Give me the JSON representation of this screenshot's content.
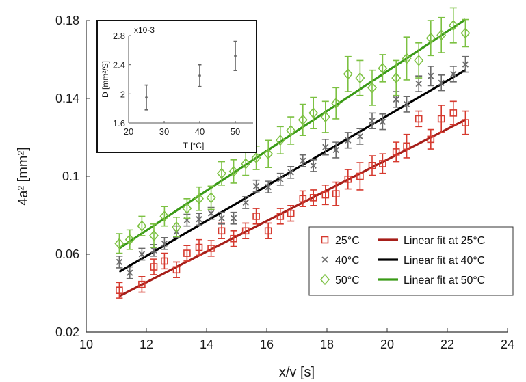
{
  "chart_data": [
    {
      "type": "scatter",
      "xlabel": "x/v [s]",
      "ylabel": "4a² [mm²]",
      "xlim": [
        10,
        24
      ],
      "ylim": [
        0.02,
        0.18
      ],
      "xticks": [
        "10",
        "12",
        "14",
        "16",
        "18",
        "20",
        "22",
        "24"
      ],
      "yticks": [
        "0.02",
        "0.06",
        "0.1",
        "0.14",
        "0.18"
      ],
      "legend_position": "bottom-right",
      "grid": false,
      "x": [
        11.1,
        11.45,
        11.85,
        12.25,
        12.6,
        13.0,
        13.35,
        13.75,
        14.15,
        14.5,
        14.9,
        15.3,
        15.65,
        16.05,
        16.45,
        16.8,
        17.2,
        17.55,
        17.95,
        18.3,
        18.7,
        19.1,
        19.5,
        19.85,
        20.3,
        20.65,
        21.05,
        21.45,
        21.8,
        22.2,
        22.6
      ],
      "series": [
        {
          "name": "25°C",
          "marker": "square",
          "color": "#d63a2f",
          "values": [
            0.0415,
            null,
            0.0445,
            0.0535,
            0.0565,
            0.052,
            0.0605,
            0.0635,
            0.063,
            0.072,
            0.068,
            0.072,
            0.0795,
            0.072,
            0.0795,
            0.081,
            0.0885,
            0.089,
            0.0905,
            0.091,
            0.0985,
            0.1,
            0.1055,
            0.1065,
            0.1125,
            0.1155,
            0.1295,
            0.119,
            0.1295,
            0.1325,
            0.1275
          ],
          "err": [
            0.004,
            null,
            0.004,
            0.004,
            0.004,
            0.004,
            0.004,
            0.004,
            0.004,
            0.004,
            0.004,
            0.004,
            0.004,
            0.004,
            0.004,
            0.004,
            0.004,
            0.004,
            0.005,
            0.006,
            0.005,
            0.007,
            0.005,
            0.005,
            0.005,
            0.006,
            0.004,
            0.005,
            0.007,
            0.006,
            0.006
          ]
        },
        {
          "name": "40°C",
          "marker": "x",
          "color": "#6b6b6b",
          "values": [
            0.056,
            0.0505,
            0.06,
            0.062,
            0.0655,
            0.0715,
            0.0775,
            0.078,
            0.081,
            0.0785,
            0.0785,
            0.0865,
            0.095,
            0.0945,
            0.0985,
            0.102,
            0.108,
            0.1055,
            0.115,
            0.1135,
            0.1185,
            0.1205,
            0.1285,
            0.128,
            0.1395,
            0.137,
            0.1475,
            0.1515,
            0.148,
            0.1525,
            0.1575
          ],
          "err": [
            0.003,
            0.003,
            0.003,
            0.003,
            0.003,
            0.003,
            0.003,
            0.003,
            0.003,
            0.003,
            0.003,
            0.003,
            0.003,
            0.003,
            0.003,
            0.003,
            0.003,
            0.003,
            0.004,
            0.004,
            0.004,
            0.004,
            0.004,
            0.004,
            0.004,
            0.004,
            0.004,
            0.005,
            0.004,
            0.004,
            0.004
          ]
        },
        {
          "name": "50°C",
          "marker": "diamond",
          "color": "#7cc142",
          "values": [
            0.0655,
            0.0675,
            0.0745,
            0.0695,
            0.0795,
            0.074,
            0.0835,
            0.0885,
            0.089,
            0.1015,
            0.1025,
            0.1065,
            0.1095,
            0.1115,
            0.1185,
            0.1235,
            0.129,
            0.1325,
            0.1305,
            0.1375,
            0.1525,
            0.1505,
            0.1455,
            0.1555,
            0.1505,
            0.1605,
            0.1595,
            0.171,
            0.1725,
            0.1775,
            0.1735
          ],
          "err": [
            0.005,
            0.005,
            0.005,
            0.006,
            0.005,
            0.005,
            0.005,
            0.006,
            0.006,
            0.006,
            0.006,
            0.006,
            0.006,
            0.007,
            0.007,
            0.007,
            0.008,
            0.008,
            0.008,
            0.008,
            0.009,
            0.009,
            0.009,
            0.007,
            0.009,
            0.011,
            0.009,
            0.009,
            0.009,
            0.009,
            0.007
          ]
        }
      ],
      "fits": [
        {
          "name": "Linear fit at 25°C",
          "color": "#a61e19",
          "x": [
            11.1,
            22.6
          ],
          "y": [
            0.0385,
            0.129
          ]
        },
        {
          "name": "Linear fit at 40°C",
          "color": "#000000",
          "x": [
            11.1,
            22.6
          ],
          "y": [
            0.051,
            0.1545
          ]
        },
        {
          "name": "Linear fit at 50°C",
          "color": "#3a9a17",
          "x": [
            11.1,
            22.6
          ],
          "y": [
            0.063,
            0.1805
          ]
        }
      ]
    },
    {
      "type": "scatter",
      "xlabel": "T [°C]",
      "ylabel": "D [mm²/S]",
      "exponent": "x10-3",
      "xlim": [
        20,
        55
      ],
      "ylim": [
        1.6,
        2.8
      ],
      "xticks": [
        "20",
        "30",
        "40",
        "50"
      ],
      "yticks": [
        "1.6",
        "2",
        "2.4",
        "2.8"
      ],
      "color": "#666666",
      "x": [
        25,
        40,
        50
      ],
      "values": [
        1.95,
        2.25,
        2.52
      ],
      "err": [
        0.17,
        0.15,
        0.2
      ]
    }
  ]
}
